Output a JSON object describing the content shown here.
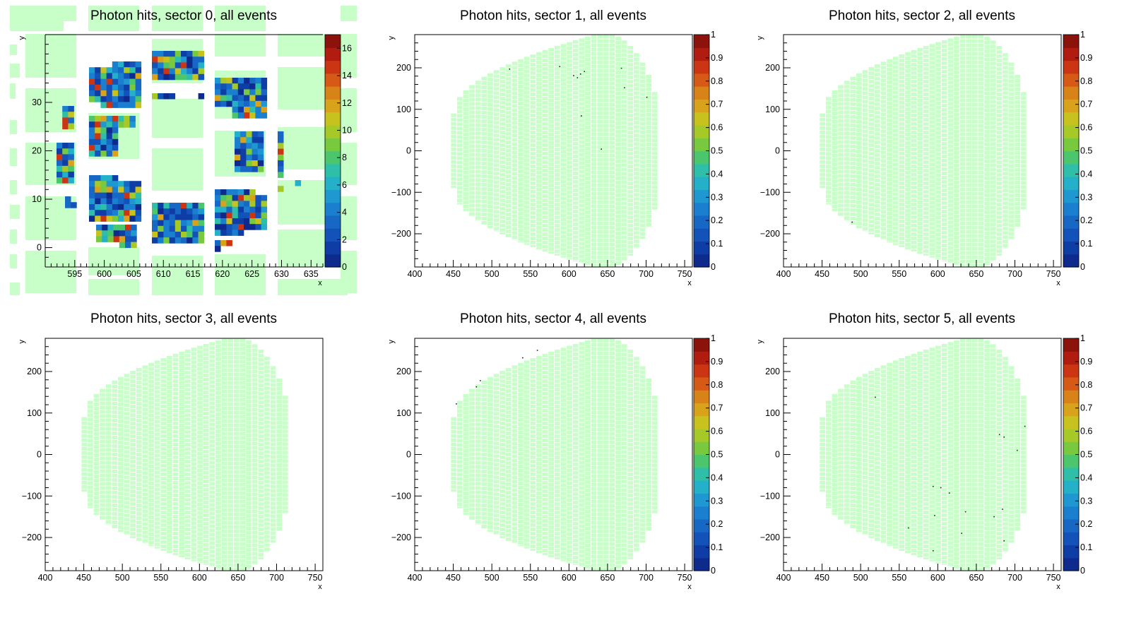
{
  "palette": [
    "#0d2a8c",
    "#0f3da6",
    "#1352b8",
    "#1767c4",
    "#1b7fd0",
    "#1f98d2",
    "#23b0c8",
    "#2fbfa8",
    "#4cc66c",
    "#78c93e",
    "#a6c928",
    "#c8c21f",
    "#d8a31b",
    "#d88318",
    "#d65a16",
    "#cb3513",
    "#b01d10",
    "#8c120c"
  ],
  "module_color": "#c8ffc8",
  "chart_data": [
    {
      "type": "heatmap",
      "title": "Photon hits, sector 0, all events",
      "xlabel": "x",
      "ylabel": "y",
      "xlim": [
        590,
        637
      ],
      "ylim": [
        -4,
        44
      ],
      "x_ticks": [
        "595",
        "600",
        "605",
        "610",
        "615",
        "620",
        "625",
        "630",
        "635"
      ],
      "x_tick_values": [
        595,
        600,
        605,
        610,
        615,
        620,
        625,
        630,
        635
      ],
      "y_ticks": [
        "0",
        "10",
        "20",
        "30"
      ],
      "y_tick_values": [
        0,
        10,
        20,
        30
      ],
      "colorbar": {
        "min": 0,
        "max": 17,
        "labels": [
          "0",
          "2",
          "4",
          "6",
          "8",
          "10",
          "12",
          "14",
          "16"
        ],
        "label_values": [
          0,
          2,
          4,
          6,
          8,
          10,
          12,
          14,
          16
        ]
      },
      "zoomed": true
    },
    {
      "type": "heatmap",
      "title": "Photon hits, sector 1, all events",
      "xlabel": "x",
      "ylabel": "y",
      "xlim": [
        400,
        760
      ],
      "ylim": [
        -280,
        280
      ],
      "x_ticks": [
        "400",
        "450",
        "500",
        "550",
        "600",
        "650",
        "700",
        "750"
      ],
      "x_tick_values": [
        400,
        450,
        500,
        550,
        600,
        650,
        700,
        750
      ],
      "y_ticks": [
        "−200",
        "−100",
        "0",
        "100",
        "200"
      ],
      "y_tick_values": [
        -200,
        -100,
        0,
        100,
        200
      ],
      "colorbar": {
        "min": 0,
        "max": 1,
        "labels": [
          "0",
          "0.1",
          "0.2",
          "0.3",
          "0.4",
          "0.5",
          "0.6",
          "0.7",
          "0.8",
          "0.9",
          "1"
        ],
        "label_values": [
          0,
          0.1,
          0.2,
          0.3,
          0.4,
          0.5,
          0.6,
          0.7,
          0.8,
          0.9,
          1
        ]
      },
      "hits": [
        [
          523,
          197
        ],
        [
          588,
          203
        ],
        [
          606,
          181
        ],
        [
          611,
          176
        ],
        [
          615,
          185
        ],
        [
          620,
          191
        ],
        [
          668,
          199
        ],
        [
          672,
          152
        ],
        [
          701,
          129
        ],
        [
          616,
          84
        ],
        [
          642,
          4
        ]
      ]
    },
    {
      "type": "heatmap",
      "title": "Photon hits, sector 2, all events",
      "xlabel": "x",
      "ylabel": "y",
      "xlim": [
        400,
        760
      ],
      "ylim": [
        -280,
        280
      ],
      "x_ticks": [
        "400",
        "450",
        "500",
        "550",
        "600",
        "650",
        "700",
        "750"
      ],
      "x_tick_values": [
        400,
        450,
        500,
        550,
        600,
        650,
        700,
        750
      ],
      "y_ticks": [
        "−200",
        "−100",
        "0",
        "100",
        "200"
      ],
      "y_tick_values": [
        -200,
        -100,
        0,
        100,
        200
      ],
      "colorbar": {
        "min": 0,
        "max": 1,
        "labels": [
          "0",
          "0.1",
          "0.2",
          "0.3",
          "0.4",
          "0.5",
          "0.6",
          "0.7",
          "0.8",
          "0.9",
          "1"
        ],
        "label_values": [
          0,
          0.1,
          0.2,
          0.3,
          0.4,
          0.5,
          0.6,
          0.7,
          0.8,
          0.9,
          1
        ]
      },
      "hits": [
        [
          489,
          -172
        ]
      ]
    },
    {
      "type": "heatmap",
      "title": "Photon hits, sector 3, all events",
      "xlabel": "x",
      "ylabel": "y",
      "xlim": [
        400,
        760
      ],
      "ylim": [
        -280,
        280
      ],
      "x_ticks": [
        "400",
        "450",
        "500",
        "550",
        "600",
        "650",
        "700",
        "750"
      ],
      "x_tick_values": [
        400,
        450,
        500,
        550,
        600,
        650,
        700,
        750
      ],
      "y_ticks": [
        "−200",
        "−100",
        "0",
        "100",
        "200"
      ],
      "y_tick_values": [
        -200,
        -100,
        0,
        100,
        200
      ],
      "colorbar": null,
      "hits": []
    },
    {
      "type": "heatmap",
      "title": "Photon hits, sector 4, all events",
      "xlabel": "x",
      "ylabel": "y",
      "xlim": [
        400,
        760
      ],
      "ylim": [
        -280,
        280
      ],
      "x_ticks": [
        "400",
        "450",
        "500",
        "550",
        "600",
        "650",
        "700",
        "750"
      ],
      "x_tick_values": [
        400,
        450,
        500,
        550,
        600,
        650,
        700,
        750
      ],
      "y_ticks": [
        "−200",
        "−100",
        "0",
        "100",
        "200"
      ],
      "y_tick_values": [
        -200,
        -100,
        0,
        100,
        200
      ],
      "colorbar": {
        "min": 0,
        "max": 1,
        "labels": [
          "0",
          "0.1",
          "0.2",
          "0.3",
          "0.4",
          "0.5",
          "0.6",
          "0.7",
          "0.8",
          "0.9",
          "1"
        ],
        "label_values": [
          0,
          0.1,
          0.2,
          0.3,
          0.4,
          0.5,
          0.6,
          0.7,
          0.8,
          0.9,
          1
        ]
      },
      "hits": [
        [
          454,
          122
        ],
        [
          480,
          163
        ],
        [
          485,
          178
        ],
        [
          540,
          233
        ],
        [
          559,
          251
        ]
      ]
    },
    {
      "type": "heatmap",
      "title": "Photon hits, sector 5, all events",
      "xlabel": "x",
      "ylabel": "y",
      "xlim": [
        400,
        760
      ],
      "ylim": [
        -280,
        280
      ],
      "x_ticks": [
        "400",
        "450",
        "500",
        "550",
        "600",
        "650",
        "700",
        "750"
      ],
      "x_tick_values": [
        400,
        450,
        500,
        550,
        600,
        650,
        700,
        750
      ],
      "y_ticks": [
        "−200",
        "−100",
        "0",
        "100",
        "200"
      ],
      "y_tick_values": [
        -200,
        -100,
        0,
        100,
        200
      ],
      "colorbar": {
        "min": 0,
        "max": 1,
        "labels": [
          "0",
          "0.1",
          "0.2",
          "0.3",
          "0.4",
          "0.5",
          "0.6",
          "0.7",
          "0.8",
          "0.9",
          "1"
        ],
        "label_values": [
          0,
          0.1,
          0.2,
          0.3,
          0.4,
          0.5,
          0.6,
          0.7,
          0.8,
          0.9,
          1
        ]
      },
      "hits": [
        [
          519,
          138
        ],
        [
          680,
          48
        ],
        [
          686,
          42
        ],
        [
          703,
          10
        ],
        [
          713,
          68
        ],
        [
          594,
          -77
        ],
        [
          604,
          -80
        ],
        [
          615,
          -93
        ],
        [
          596,
          -147
        ],
        [
          636,
          -138
        ],
        [
          673,
          -150
        ],
        [
          684,
          -132
        ],
        [
          562,
          -177
        ],
        [
          631,
          -190
        ],
        [
          686,
          -208
        ],
        [
          594,
          -232
        ]
      ]
    }
  ]
}
